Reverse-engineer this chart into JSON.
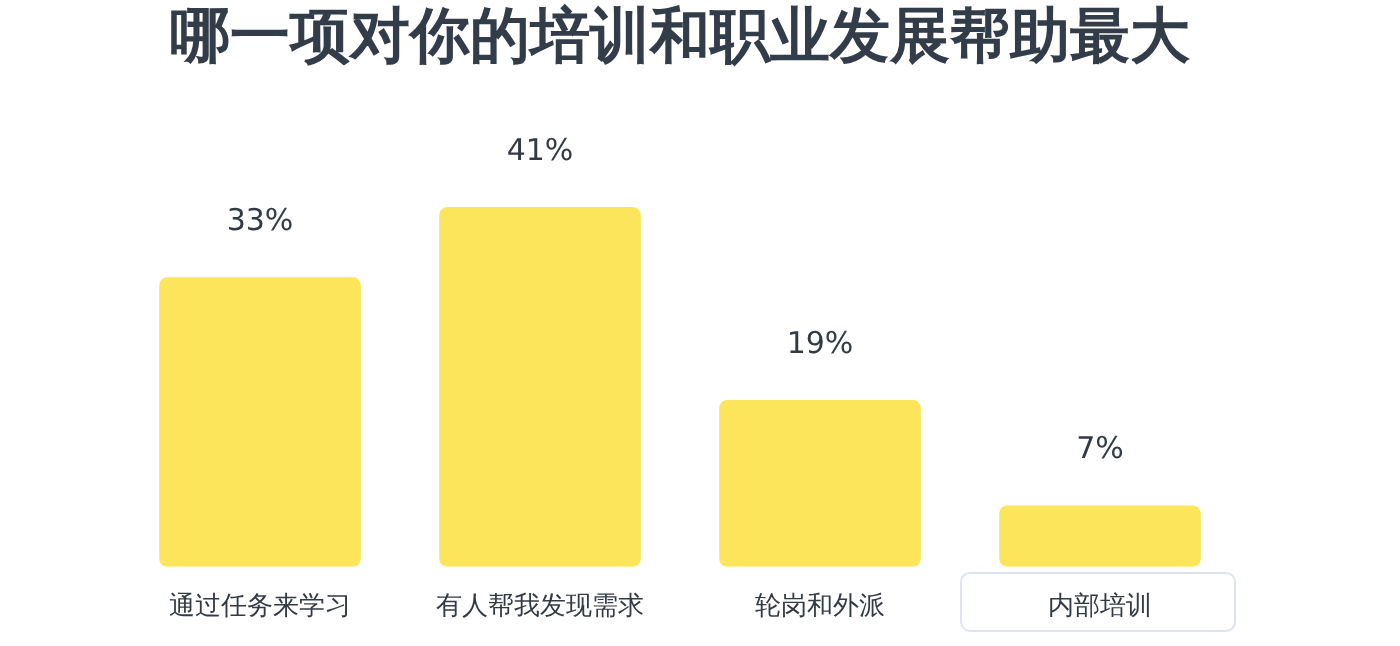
{
  "chart_data": {
    "type": "bar",
    "title": "哪一项对你的培训和职业发展帮助最大",
    "categories": [
      "通过任务来学习",
      "有人帮我发现需求",
      "轮岗和外派",
      "内部培训"
    ],
    "values": [
      33,
      41,
      19,
      7
    ],
    "value_labels": [
      "33%",
      "41%",
      "19%",
      "7%"
    ],
    "color": "#fce55a",
    "grid": false,
    "legend": false
  }
}
